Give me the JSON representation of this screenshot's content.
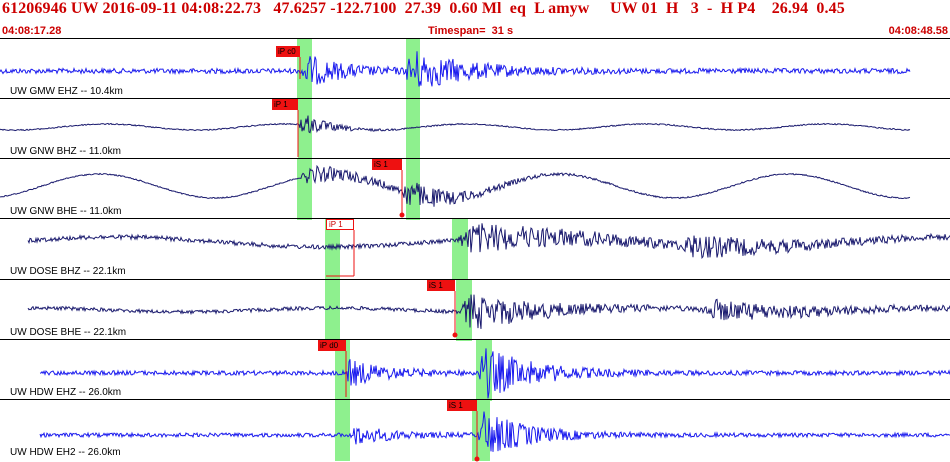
{
  "header": {
    "title": "61206946 UW 2016-09-11 04:08:22.73   47.6257 -122.7100  27.39  0.60 Ml  eq  L amyw     UW 01  H   3  -  H P4    26.94  0.45",
    "start_time": "04:08:17.28",
    "timespan": "Timespan=  31 s",
    "end_time": "04:08:48.58"
  },
  "colors": {
    "trace_blue": "#1a1aee",
    "trace_navy": "#1a1a6e",
    "pick_red": "#ee1111",
    "window_green": "#8ef08e",
    "text_red": "#cc0000"
  },
  "traces": [
    {
      "label": "UW GMW EHZ -- 10.4km",
      "color": "blue",
      "picks": [
        {
          "label": "iP c0",
          "style": "filled"
        }
      ],
      "windows": 2
    },
    {
      "label": "UW GNW BHZ -- 11.0km",
      "color": "navy",
      "picks": [
        {
          "label": "iP 1",
          "style": "filled"
        }
      ],
      "windows": 2
    },
    {
      "label": "UW GNW BHE -- 11.0km",
      "color": "navy",
      "picks": [
        {
          "label": "iS 1",
          "style": "filled"
        }
      ],
      "windows": 2
    },
    {
      "label": "UW DOSE BHZ -- 22.1km",
      "color": "navy",
      "picks": [
        {
          "label": "iP 1",
          "style": "outline"
        }
      ],
      "windows": 2
    },
    {
      "label": "UW DOSE BHE -- 22.1km",
      "color": "navy",
      "picks": [
        {
          "label": "iS 1",
          "style": "filled"
        }
      ],
      "windows": 2
    },
    {
      "label": "UW HDW EHZ -- 26.0km",
      "color": "blue",
      "picks": [
        {
          "label": "iP d0",
          "style": "filled"
        }
      ],
      "windows": 2
    },
    {
      "label": "UW HDW EH2 -- 26.0km",
      "color": "blue",
      "picks": [
        {
          "label": "iS 1",
          "style": "filled"
        }
      ],
      "windows": 2
    }
  ]
}
